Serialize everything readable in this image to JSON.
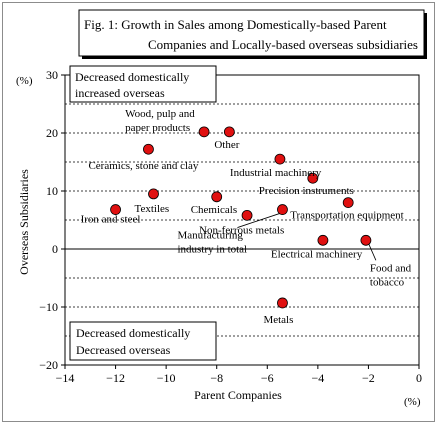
{
  "chart_data": {
    "type": "scatter",
    "title": "Fig. 1: Growth in Sales among Domestically-based Parent Companies and Locally-based overseas subsidiaries",
    "title_lines": [
      "Fig. 1: Growth in Sales among Domestically-based Parent",
      "Companies and Locally-based overseas subsidiaries"
    ],
    "xlabel": "Parent Companies",
    "ylabel": "Overseas Subsidiaries",
    "x_unit": "(%)",
    "y_unit": "(%)",
    "xlim": [
      -14,
      0
    ],
    "ylim": [
      -20,
      30
    ],
    "x_ticks": [
      -14,
      -12,
      -10,
      -8,
      -6,
      -4,
      -2,
      0
    ],
    "y_ticks": [
      -20,
      -10,
      0,
      10,
      20,
      30
    ],
    "grid": "dashed horizontal",
    "marker_color": "#e01010",
    "quadrant_labels": {
      "top": [
        "Decreased domestically",
        "increased overseas"
      ],
      "bottom": [
        "Decreased domestically",
        "Decreased overseas"
      ]
    },
    "points": [
      {
        "name": "Wood, pulp and paper products",
        "label_lines": [
          "Wood, pulp and",
          "paper products"
        ],
        "x": -8.5,
        "y": 20.2
      },
      {
        "name": "Other",
        "label_lines": [
          "Other"
        ],
        "x": -7.5,
        "y": 20.2
      },
      {
        "name": "Ceramics, stone and clay",
        "label_lines": [
          "Ceramics, stone and clay"
        ],
        "x": -10.7,
        "y": 17.2
      },
      {
        "name": "Industrial machinery",
        "label_lines": [
          "Industrial machinery"
        ],
        "x": -5.5,
        "y": 15.5
      },
      {
        "name": "Precision instruments",
        "label_lines": [
          "Precision instruments"
        ],
        "x": -4.2,
        "y": 12.2
      },
      {
        "name": "Textiles",
        "label_lines": [
          "Textiles"
        ],
        "x": -10.5,
        "y": 9.5
      },
      {
        "name": "Chemicals",
        "label_lines": [
          "Chemicals"
        ],
        "x": -8.0,
        "y": 9.0
      },
      {
        "name": "Transportation equipment",
        "label_lines": [
          "Transportation equipment"
        ],
        "x": -2.8,
        "y": 8.0
      },
      {
        "name": "Iron and steel",
        "label_lines": [
          "Iron and steel"
        ],
        "x": -12.0,
        "y": 6.8
      },
      {
        "name": "Manufacturing industry in total",
        "label_lines": [
          "Manufacturing",
          "industry in total"
        ],
        "x": -5.4,
        "y": 6.8
      },
      {
        "name": "Non-ferrous metals",
        "label_lines": [
          "Non-ferrous metals"
        ],
        "x": -6.8,
        "y": 5.8
      },
      {
        "name": "Electrical machinery",
        "label_lines": [
          "Electrical machinery"
        ],
        "x": -3.8,
        "y": 1.5
      },
      {
        "name": "Food and tobacco",
        "label_lines": [
          "Food and",
          "tobacco"
        ],
        "x": -2.1,
        "y": 1.5
      },
      {
        "name": "Metals",
        "label_lines": [
          "Metals"
        ],
        "x": -5.4,
        "y": -9.3
      }
    ]
  }
}
